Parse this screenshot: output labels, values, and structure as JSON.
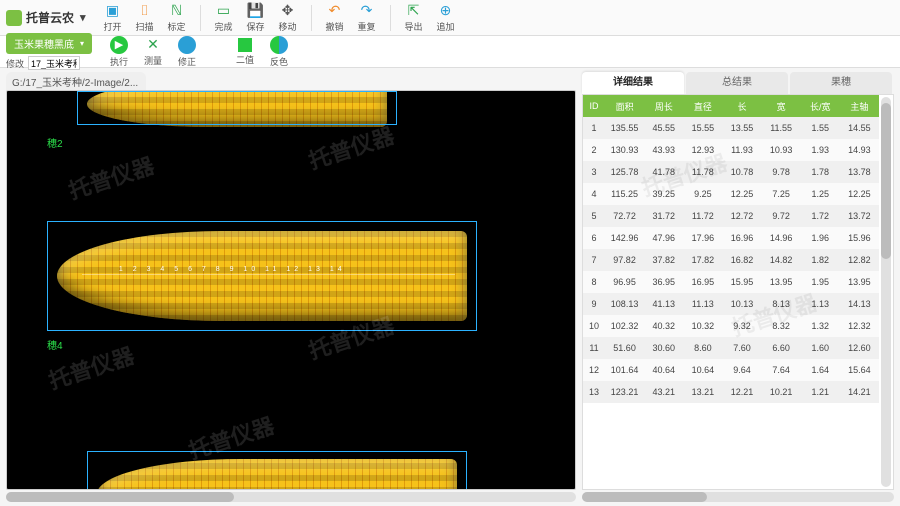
{
  "brand": {
    "name": "托普云农",
    "dropdown": "▾"
  },
  "toolbar": {
    "open": {
      "label": "打开",
      "color": "#2a9fd6",
      "glyph": "▣"
    },
    "scan": {
      "label": "扫描",
      "color": "#f08c2e",
      "glyph": "⌷"
    },
    "mark": {
      "label": "标定",
      "color": "#2ea44f",
      "glyph": "ℕ"
    },
    "done": {
      "label": "完成",
      "color": "#2ea44f",
      "glyph": "▭"
    },
    "save": {
      "label": "保存",
      "color": "#2a9fd6",
      "glyph": "💾"
    },
    "move": {
      "label": "移动",
      "color": "#555555",
      "glyph": "✥"
    },
    "undo": {
      "label": "撤销",
      "color": "#f08c2e",
      "glyph": "↶"
    },
    "redo": {
      "label": "重复",
      "color": "#2a9fd6",
      "glyph": "↷"
    },
    "export": {
      "label": "导出",
      "color": "#2ea44f",
      "glyph": "⇱"
    },
    "append": {
      "label": "追加",
      "color": "#2a9fd6",
      "glyph": "⊕"
    }
  },
  "toolbar2": {
    "combo": "玉米果穗黑底",
    "modify_label": "修改",
    "modify_value": "17_玉米考种",
    "run": {
      "label": "执行",
      "color": "#27c840"
    },
    "measure": {
      "label": "测量",
      "color": "#2ea44f"
    },
    "fix": {
      "label": "修正",
      "color": "#2a9fd6"
    },
    "binary": {
      "label": "二值",
      "color": "#27c840"
    },
    "invert": {
      "label": "反色",
      "color": "#2a9fd6"
    }
  },
  "image": {
    "path": "G:/17_玉米考种/2-Image/2...",
    "labels": {
      "e2": "穗2",
      "e4": "穗4"
    },
    "ruler_text": "1 2 3 4 5 6 7 8 9 10 11 12 13 14",
    "watermark": "托普仪器"
  },
  "tabs": {
    "detail": "详细结果",
    "total": "总结果",
    "ear": "果穗"
  },
  "table": {
    "headers": [
      "ID",
      "面积",
      "周长",
      "直径",
      "长",
      "宽",
      "长/宽",
      "主轴"
    ],
    "header_bg": "#7cc043",
    "rows": [
      [
        "1",
        "135.55",
        "45.55",
        "15.55",
        "13.55",
        "11.55",
        "1.55",
        "14.55"
      ],
      [
        "2",
        "130.93",
        "43.93",
        "12.93",
        "11.93",
        "10.93",
        "1.93",
        "14.93"
      ],
      [
        "3",
        "125.78",
        "41.78",
        "11.78",
        "10.78",
        "9.78",
        "1.78",
        "13.78"
      ],
      [
        "4",
        "115.25",
        "39.25",
        "9.25",
        "12.25",
        "7.25",
        "1.25",
        "12.25"
      ],
      [
        "5",
        "72.72",
        "31.72",
        "11.72",
        "12.72",
        "9.72",
        "1.72",
        "13.72"
      ],
      [
        "6",
        "142.96",
        "47.96",
        "17.96",
        "16.96",
        "14.96",
        "1.96",
        "15.96"
      ],
      [
        "7",
        "97.82",
        "37.82",
        "17.82",
        "16.82",
        "14.82",
        "1.82",
        "12.82"
      ],
      [
        "8",
        "96.95",
        "36.95",
        "16.95",
        "15.95",
        "13.95",
        "1.95",
        "13.95"
      ],
      [
        "9",
        "108.13",
        "41.13",
        "11.13",
        "10.13",
        "8.13",
        "1.13",
        "14.13"
      ],
      [
        "10",
        "102.32",
        "40.32",
        "10.32",
        "9.32",
        "8.32",
        "1.32",
        "12.32"
      ],
      [
        "11",
        "51.60",
        "30.60",
        "8.60",
        "7.60",
        "6.60",
        "1.60",
        "12.60"
      ],
      [
        "12",
        "101.64",
        "40.64",
        "10.64",
        "9.64",
        "7.64",
        "1.64",
        "15.64"
      ],
      [
        "13",
        "123.21",
        "43.21",
        "13.21",
        "12.21",
        "10.21",
        "1.21",
        "14.21"
      ]
    ]
  }
}
